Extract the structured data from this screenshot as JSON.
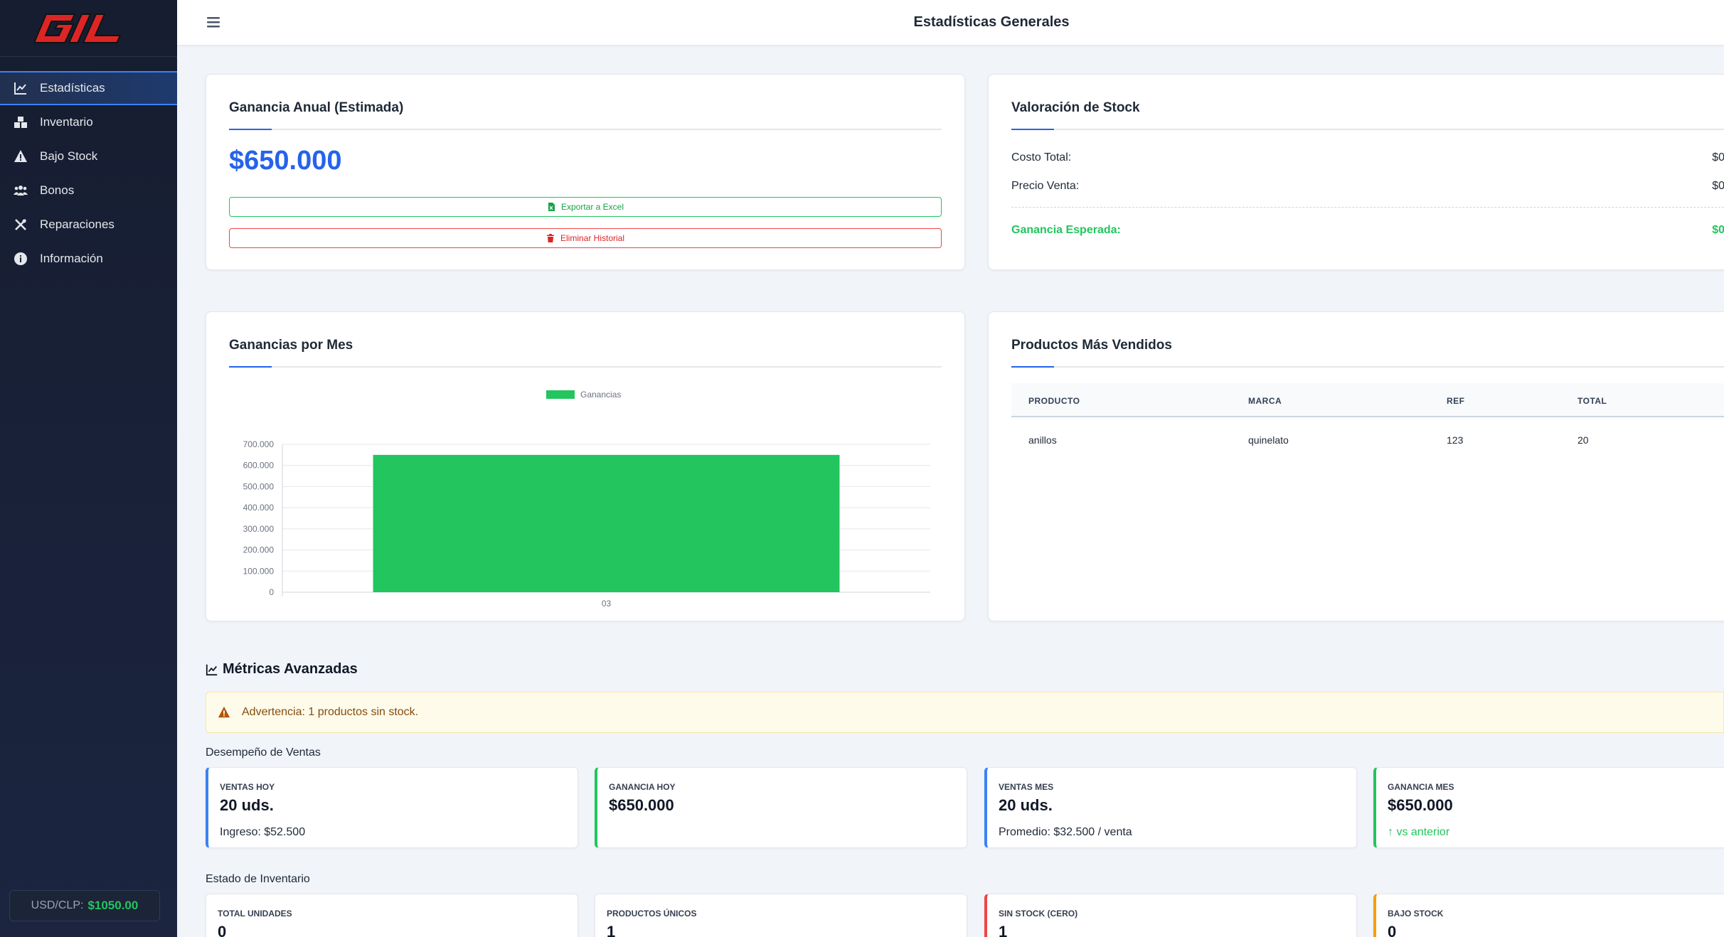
{
  "brand": {
    "logo_text": "GIL",
    "logo_color": "#dc2626"
  },
  "sidebar": {
    "items": [
      {
        "label": "Estadísticas",
        "icon": "chart-line-icon",
        "active": true
      },
      {
        "label": "Inventario",
        "icon": "boxes-icon"
      },
      {
        "label": "Bajo Stock",
        "icon": "warning-icon"
      },
      {
        "label": "Bonos",
        "icon": "users-icon"
      },
      {
        "label": "Reparaciones",
        "icon": "tools-icon"
      },
      {
        "label": "Información",
        "icon": "info-icon"
      }
    ],
    "currency_label": "USD/CLP:",
    "currency_value": "$1050.00"
  },
  "header": {
    "title": "Estadísticas Generales"
  },
  "annual": {
    "title": "Ganancia Anual (Estimada)",
    "amount": "$650.000",
    "export_label": "Exportar a Excel",
    "delete_label": "Eliminar Historial"
  },
  "stock_valuation": {
    "title": "Valoración de Stock",
    "cost_label": "Costo Total:",
    "cost_value": "$0",
    "price_label": "Precio Venta:",
    "price_value": "$0",
    "expected_label": "Ganancia Esperada:",
    "expected_value": "$0"
  },
  "monthly": {
    "title": "Ganancias por Mes"
  },
  "chart_data": {
    "type": "bar",
    "categories": [
      "03"
    ],
    "series": [
      {
        "name": "Ganancias",
        "values": [
          650000
        ],
        "color": "#22c55e"
      }
    ],
    "ylim": [
      0,
      700000
    ],
    "y_ticks": [
      "0",
      "100.000",
      "200.000",
      "300.000",
      "400.000",
      "500.000",
      "600.000",
      "700.000"
    ],
    "legend": "top-center",
    "grid": true
  },
  "top_products": {
    "title": "Productos Más Vendidos",
    "columns": [
      "PRODUCTO",
      "MARCA",
      "REF",
      "TOTAL"
    ],
    "rows": [
      [
        "anillos",
        "quinelato",
        "123",
        "20"
      ]
    ]
  },
  "advanced": {
    "title": "Métricas Avanzadas",
    "warning": "Advertencia: 1 productos sin stock.",
    "sales_title": "Desempeño de Ventas",
    "sales": [
      {
        "label": "VENTAS HOY",
        "value": "20 uds.",
        "sub": "Ingreso: $52.500",
        "accent": "#3b82f6"
      },
      {
        "label": "GANANCIA HOY",
        "value": "$650.000",
        "sub": "",
        "accent": "#22c55e"
      },
      {
        "label": "VENTAS MES",
        "value": "20 uds.",
        "sub": "Promedio: $32.500 / venta",
        "accent": "#3b82f6"
      },
      {
        "label": "GANANCIA MES",
        "value": "$650.000",
        "sub": "↑ vs anterior",
        "accent": "#22c55e"
      }
    ],
    "inventory_title": "Estado de Inventario",
    "inventory": [
      {
        "label": "TOTAL UNIDADES",
        "value": "0"
      },
      {
        "label": "PRODUCTOS ÚNICOS",
        "value": "1"
      },
      {
        "label": "SIN STOCK (CERO)",
        "value": "1",
        "accent": "#ef4444"
      },
      {
        "label": "BAJO STOCK",
        "value": "0",
        "accent": "#f59e0b"
      }
    ]
  }
}
